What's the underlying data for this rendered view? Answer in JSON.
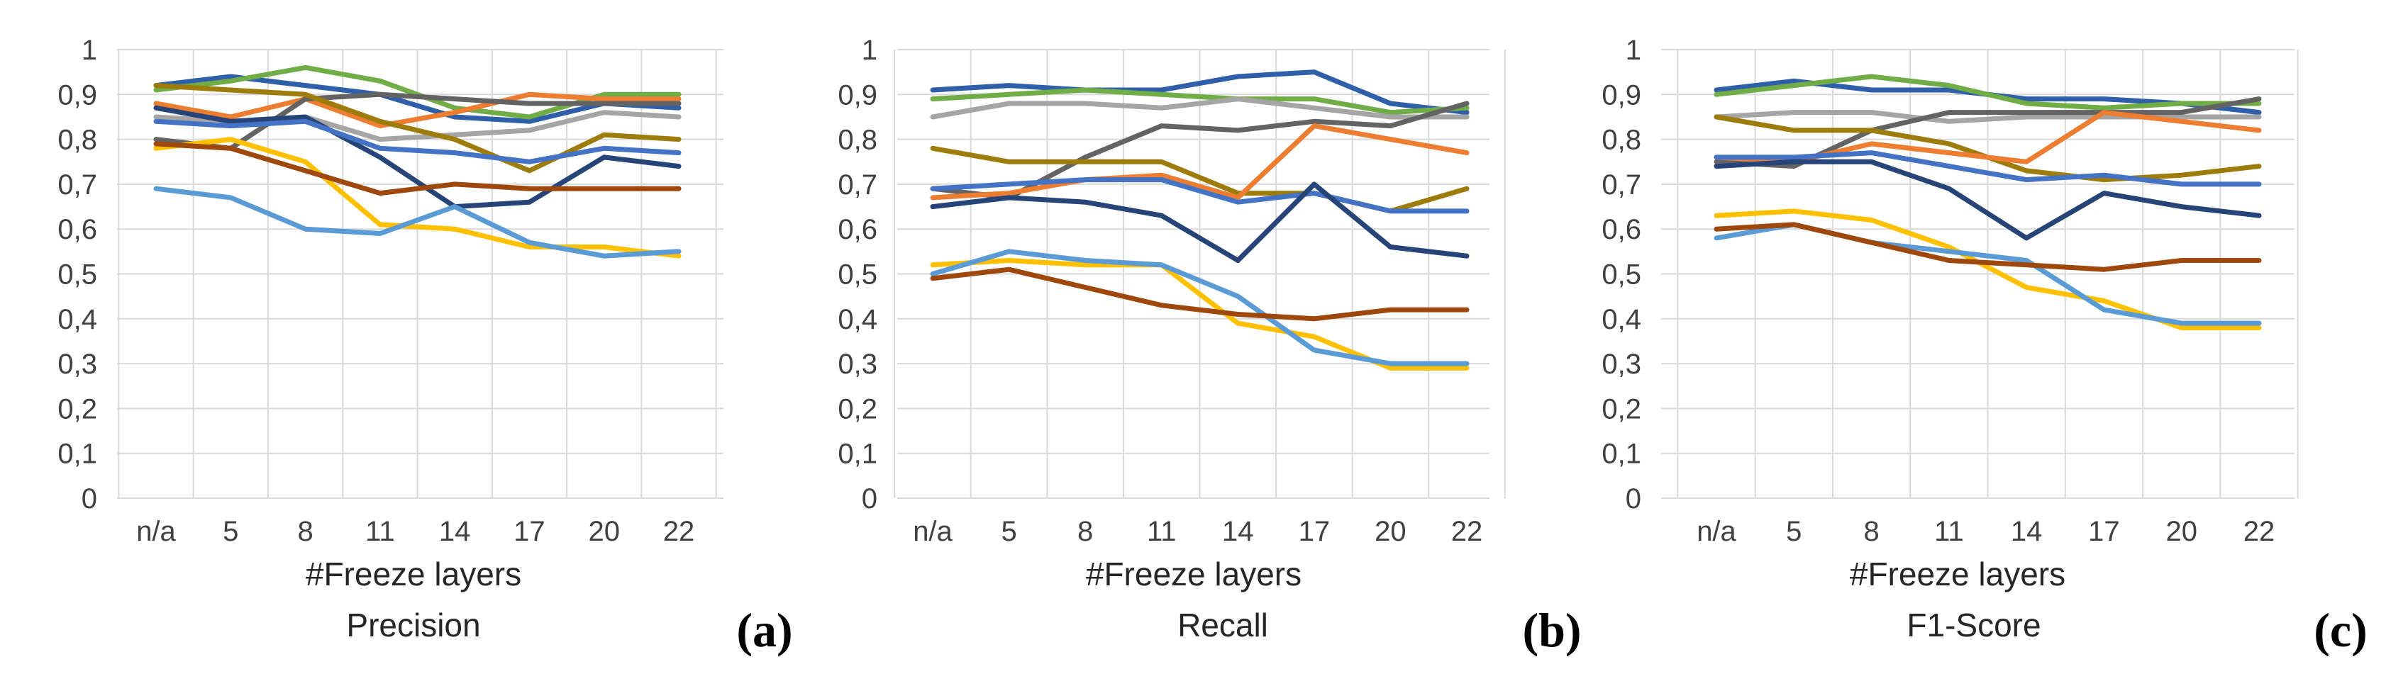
{
  "chart_data": [
    {
      "type": "line",
      "id": "precision",
      "title": "Precision",
      "panel_tag": "(a)",
      "xlabel": "#Freeze layers",
      "ylabel": "",
      "categories": [
        "n/a",
        "5",
        "8",
        "11",
        "14",
        "17",
        "20",
        "22"
      ],
      "ylim": [
        0,
        1
      ],
      "yticks": [
        "0",
        "0,1",
        "0,2",
        "0,3",
        "0,4",
        "0,5",
        "0,6",
        "0,7",
        "0,8",
        "0,9",
        "1"
      ],
      "grid": true,
      "series": [
        {
          "color": "#2e5fa8",
          "values": [
            0.92,
            0.94,
            0.92,
            0.9,
            0.85,
            0.84,
            0.88,
            0.87
          ]
        },
        {
          "color": "#70ad47",
          "values": [
            0.91,
            0.93,
            0.96,
            0.93,
            0.87,
            0.85,
            0.9,
            0.9
          ]
        },
        {
          "color": "#ed7d31",
          "values": [
            0.88,
            0.85,
            0.89,
            0.83,
            0.86,
            0.9,
            0.89,
            0.89
          ]
        },
        {
          "color": "#a5a5a5",
          "values": [
            0.85,
            0.84,
            0.85,
            0.8,
            0.81,
            0.82,
            0.86,
            0.85
          ]
        },
        {
          "color": "#636363",
          "values": [
            0.8,
            0.78,
            0.89,
            0.9,
            0.89,
            0.88,
            0.88,
            0.88
          ]
        },
        {
          "color": "#9e7c0c",
          "values": [
            0.92,
            0.91,
            0.9,
            0.84,
            0.8,
            0.73,
            0.81,
            0.8
          ]
        },
        {
          "color": "#264478",
          "values": [
            0.87,
            0.84,
            0.85,
            0.76,
            0.65,
            0.66,
            0.76,
            0.74
          ]
        },
        {
          "color": "#4472c4",
          "values": [
            0.84,
            0.83,
            0.84,
            0.78,
            0.77,
            0.75,
            0.78,
            0.77
          ]
        },
        {
          "color": "#ffc000",
          "values": [
            0.78,
            0.8,
            0.75,
            0.61,
            0.6,
            0.56,
            0.56,
            0.54
          ]
        },
        {
          "color": "#5b9bd5",
          "values": [
            0.69,
            0.67,
            0.6,
            0.59,
            0.65,
            0.57,
            0.54,
            0.55
          ]
        },
        {
          "color": "#9e480e",
          "values": [
            0.79,
            0.78,
            0.73,
            0.68,
            0.7,
            0.69,
            0.69,
            0.69
          ]
        }
      ]
    },
    {
      "type": "line",
      "id": "recall",
      "title": "Recall",
      "panel_tag": "(b)",
      "xlabel": "#Freeze layers",
      "ylabel": "",
      "categories": [
        "n/a",
        "5",
        "8",
        "11",
        "14",
        "17",
        "20",
        "22"
      ],
      "ylim": [
        0,
        1
      ],
      "yticks": [
        "0",
        "0,1",
        "0,2",
        "0,3",
        "0,4",
        "0,5",
        "0,6",
        "0,7",
        "0,8",
        "0,9",
        "1"
      ],
      "grid": true,
      "series": [
        {
          "color": "#2e5fa8",
          "values": [
            0.91,
            0.92,
            0.91,
            0.91,
            0.94,
            0.95,
            0.88,
            0.86
          ]
        },
        {
          "color": "#70ad47",
          "values": [
            0.89,
            0.9,
            0.91,
            0.9,
            0.89,
            0.89,
            0.86,
            0.87
          ]
        },
        {
          "color": "#a5a5a5",
          "values": [
            0.85,
            0.88,
            0.88,
            0.87,
            0.89,
            0.87,
            0.85,
            0.85
          ]
        },
        {
          "color": "#636363",
          "values": [
            0.69,
            0.67,
            0.76,
            0.83,
            0.82,
            0.84,
            0.83,
            0.88
          ]
        },
        {
          "color": "#9e7c0c",
          "values": [
            0.78,
            0.75,
            0.75,
            0.75,
            0.68,
            0.68,
            0.64,
            0.69
          ]
        },
        {
          "color": "#ed7d31",
          "values": [
            0.67,
            0.68,
            0.71,
            0.72,
            0.67,
            0.83,
            0.8,
            0.77
          ]
        },
        {
          "color": "#4472c4",
          "values": [
            0.69,
            0.7,
            0.71,
            0.71,
            0.66,
            0.68,
            0.64,
            0.64
          ]
        },
        {
          "color": "#264478",
          "values": [
            0.65,
            0.67,
            0.66,
            0.63,
            0.53,
            0.7,
            0.56,
            0.54
          ]
        },
        {
          "color": "#ffc000",
          "values": [
            0.52,
            0.53,
            0.52,
            0.52,
            0.39,
            0.36,
            0.29,
            0.29
          ]
        },
        {
          "color": "#5b9bd5",
          "values": [
            0.5,
            0.55,
            0.53,
            0.52,
            0.45,
            0.33,
            0.3,
            0.3
          ]
        },
        {
          "color": "#9e480e",
          "values": [
            0.49,
            0.51,
            0.47,
            0.43,
            0.41,
            0.4,
            0.42,
            0.42
          ]
        }
      ]
    },
    {
      "type": "line",
      "id": "f1",
      "title": "F1-Score",
      "panel_tag": "(c)",
      "xlabel": "#Freeze layers",
      "ylabel": "",
      "categories": [
        "n/a",
        "5",
        "8",
        "11",
        "14",
        "17",
        "20",
        "22"
      ],
      "ylim": [
        0,
        1
      ],
      "yticks": [
        "0",
        "0,1",
        "0,2",
        "0,3",
        "0,4",
        "0,5",
        "0,6",
        "0,7",
        "0,8",
        "0,9",
        "1"
      ],
      "grid": true,
      "series": [
        {
          "color": "#2e5fa8",
          "values": [
            0.91,
            0.93,
            0.91,
            0.91,
            0.89,
            0.89,
            0.88,
            0.86
          ]
        },
        {
          "color": "#70ad47",
          "values": [
            0.9,
            0.92,
            0.94,
            0.92,
            0.88,
            0.87,
            0.88,
            0.88
          ]
        },
        {
          "color": "#a5a5a5",
          "values": [
            0.85,
            0.86,
            0.86,
            0.84,
            0.85,
            0.85,
            0.85,
            0.85
          ]
        },
        {
          "color": "#636363",
          "values": [
            0.75,
            0.74,
            0.82,
            0.86,
            0.86,
            0.86,
            0.86,
            0.89
          ]
        },
        {
          "color": "#9e7c0c",
          "values": [
            0.85,
            0.82,
            0.82,
            0.79,
            0.73,
            0.71,
            0.72,
            0.74
          ]
        },
        {
          "color": "#ed7d31",
          "values": [
            0.76,
            0.75,
            0.79,
            0.77,
            0.75,
            0.86,
            0.84,
            0.82
          ]
        },
        {
          "color": "#4472c4",
          "values": [
            0.76,
            0.76,
            0.77,
            0.74,
            0.71,
            0.72,
            0.7,
            0.7
          ]
        },
        {
          "color": "#264478",
          "values": [
            0.74,
            0.75,
            0.75,
            0.69,
            0.58,
            0.68,
            0.65,
            0.63
          ]
        },
        {
          "color": "#ffc000",
          "values": [
            0.63,
            0.64,
            0.62,
            0.56,
            0.47,
            0.44,
            0.38,
            0.38
          ]
        },
        {
          "color": "#5b9bd5",
          "values": [
            0.58,
            0.61,
            0.57,
            0.55,
            0.53,
            0.42,
            0.39,
            0.39
          ]
        },
        {
          "color": "#9e480e",
          "values": [
            0.6,
            0.61,
            0.57,
            0.53,
            0.52,
            0.51,
            0.53,
            0.53
          ]
        }
      ]
    }
  ]
}
